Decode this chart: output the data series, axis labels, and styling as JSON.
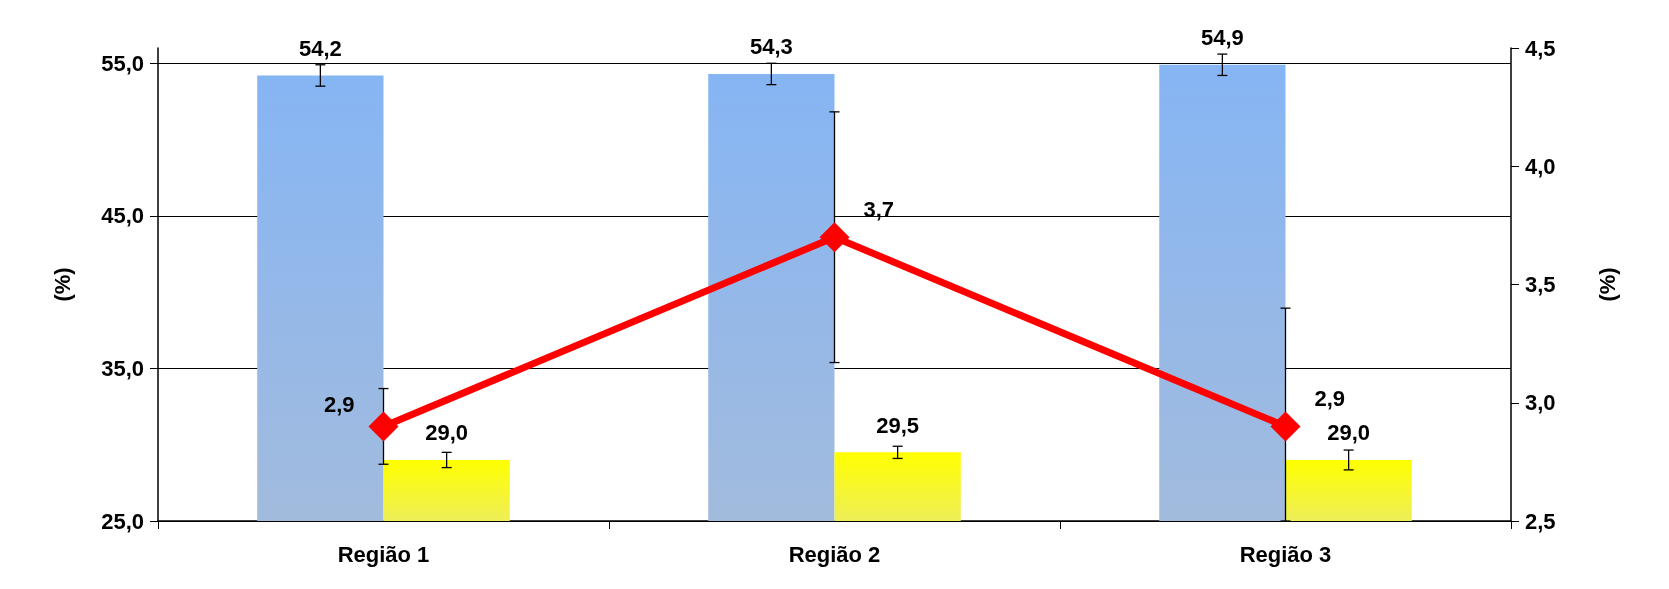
{
  "chart_data": {
    "type": "bar",
    "ylabel": "(%)",
    "y2label": "(%)",
    "categories": [
      "Região 1",
      "Região 2",
      "Região 3"
    ],
    "series": [
      {
        "color": "#7097cc",
        "values": [
          54.2,
          54.3,
          54.9
        ],
        "errors": [
          0.7,
          0.7,
          0.7
        ],
        "value_labels": [
          "54,2",
          "54,3",
          "54,9"
        ]
      },
      {
        "color": "#e6e600",
        "values": [
          29.0,
          29.5,
          29.0
        ],
        "errors": [
          0.5,
          0.4,
          0.65
        ],
        "value_labels": [
          "29,0",
          "29,5",
          "29,0"
        ]
      },
      {
        "type": "line",
        "axis": "y2",
        "color": "#ff0000",
        "values": [
          2.9,
          3.7,
          2.9
        ],
        "errors": [
          0.16,
          0.53,
          [
            2.5,
            3.4
          ]
        ],
        "value_labels": [
          "2,9",
          "3,7",
          "2,9"
        ],
        "marker": "diamond"
      }
    ],
    "ylim": [
      25,
      56
    ],
    "yticks": [
      {
        "value": 25,
        "label": "25,0"
      },
      {
        "value": 35,
        "label": "35,0"
      },
      {
        "value": 45,
        "label": "45,0"
      },
      {
        "value": 55,
        "label": "55,0"
      }
    ],
    "y2lim": [
      2.5,
      4.5
    ],
    "y2ticks": [
      {
        "value": 2.5,
        "label": "2,5"
      },
      {
        "value": 3,
        "label": "3,0"
      },
      {
        "value": 3.5,
        "label": "3,5"
      },
      {
        "value": 4,
        "label": "4,0"
      },
      {
        "value": 4.5,
        "label": "4,5"
      }
    ],
    "grid": "y"
  }
}
